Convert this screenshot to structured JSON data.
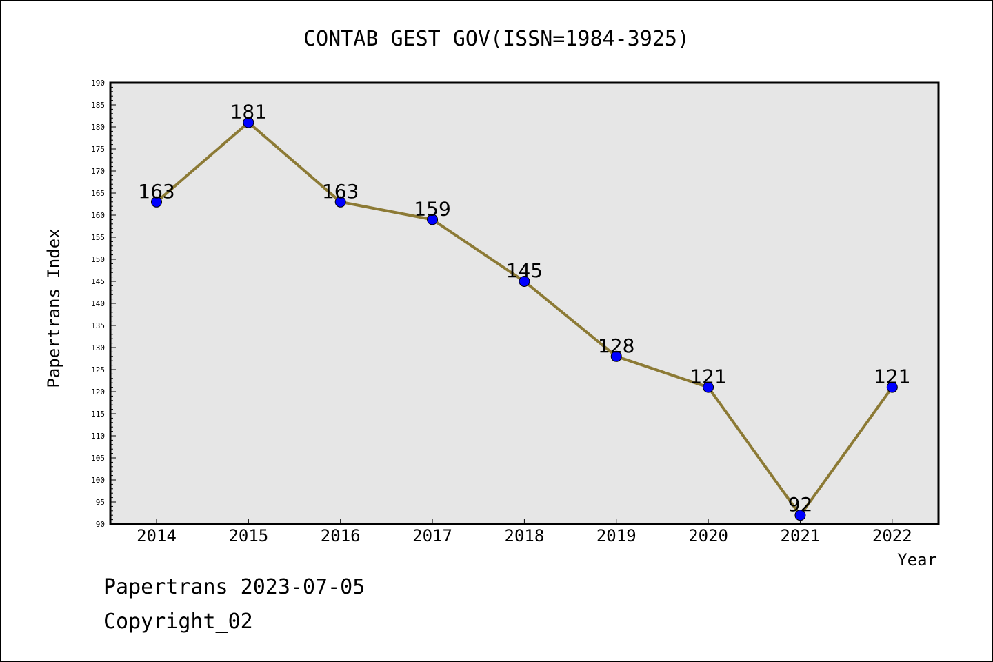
{
  "chart_data": {
    "type": "line",
    "title": "CONTAB GEST GOV(ISSN=1984-3925)",
    "xlabel": "Year",
    "ylabel": "Papertrans Index",
    "categories": [
      "2014",
      "2015",
      "2016",
      "2017",
      "2018",
      "2019",
      "2020",
      "2021",
      "2022"
    ],
    "values": [
      163,
      181,
      163,
      159,
      145,
      128,
      121,
      92,
      121
    ],
    "data_labels": [
      "163",
      "181",
      "163",
      "159",
      "145",
      "128",
      "121",
      "92",
      "121"
    ],
    "ylim": [
      90,
      190
    ],
    "y_ticks": [
      "90",
      "95",
      "100",
      "105",
      "110",
      "115",
      "120",
      "125",
      "130",
      "135",
      "140",
      "145",
      "150",
      "155",
      "160",
      "165",
      "170",
      "175",
      "180",
      "185",
      "190"
    ],
    "grid": false,
    "colors": {
      "line": "#8c7a35",
      "marker": "#0000ff",
      "plot_background": "#e6e6e6"
    }
  },
  "footer": {
    "line1": "Papertrans 2023-07-05",
    "line2": "Copyright_02"
  }
}
